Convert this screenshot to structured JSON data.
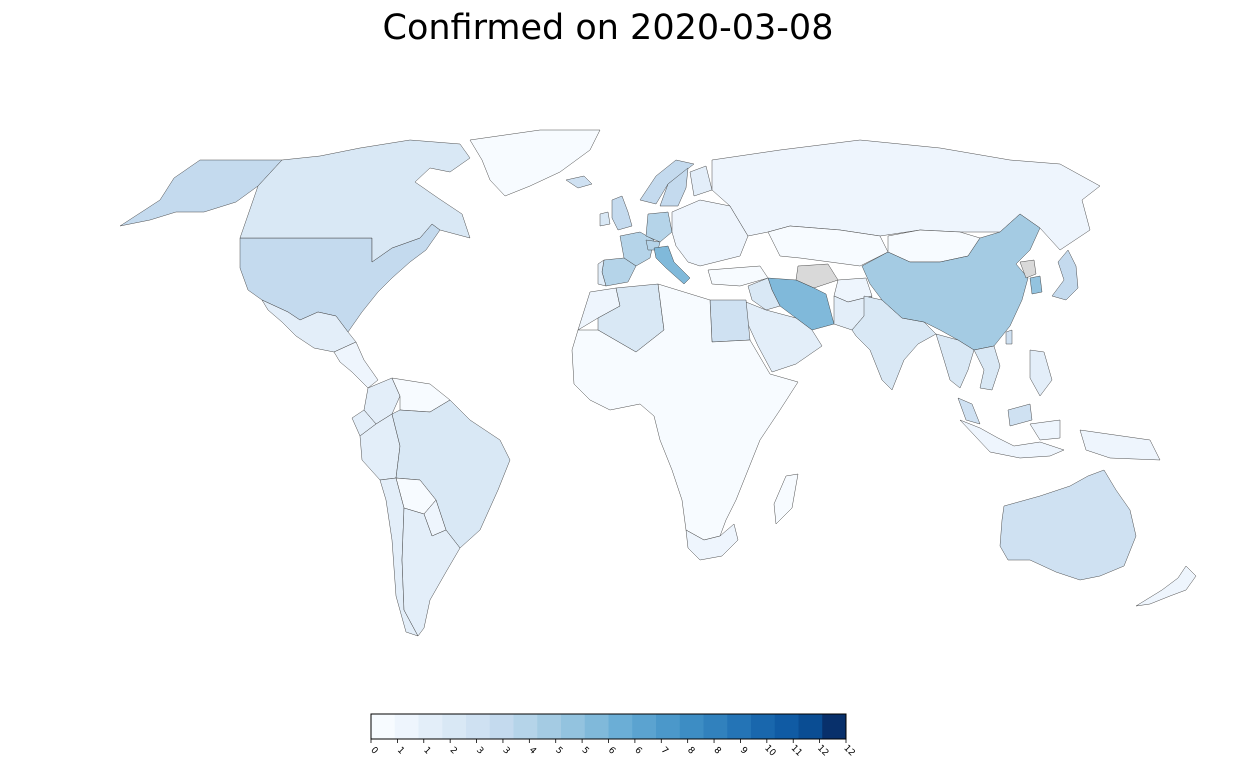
{
  "title": "Confirmed on 2020-03-08",
  "colorbar": {
    "ticks": [
      "0",
      "1",
      "1",
      "2",
      "3",
      "3",
      "4",
      "5",
      "5",
      "6",
      "6",
      "7",
      "8",
      "8",
      "9",
      "10",
      "11",
      "12",
      "12"
    ],
    "colors": [
      "#f7fbff",
      "#eef5fd",
      "#e3eef9",
      "#d9e8f5",
      "#cfe1f2",
      "#c4daee",
      "#b5d4e9",
      "#a4cbe3",
      "#93c3df",
      "#80b9da",
      "#6baed6",
      "#5ba3d0",
      "#4b98ca",
      "#3d8dc4",
      "#3181bd",
      "#2474b6",
      "#1967ad",
      "#105ba4",
      "#0a4d93",
      "#08306b"
    ],
    "edge_color": "#000000"
  },
  "countries": [
    {
      "name": "United States",
      "level": 5
    },
    {
      "name": "Alaska",
      "level": 5
    },
    {
      "name": "Canada",
      "level": 3
    },
    {
      "name": "Greenland",
      "level": 0
    },
    {
      "name": "Mexico",
      "level": 2
    },
    {
      "name": "Central America",
      "level": 1
    },
    {
      "name": "Colombia",
      "level": 2
    },
    {
      "name": "Venezuela",
      "level": 0
    },
    {
      "name": "Ecuador",
      "level": 2
    },
    {
      "name": "Peru",
      "level": 2
    },
    {
      "name": "Brazil",
      "level": 3
    },
    {
      "name": "Bolivia",
      "level": 0
    },
    {
      "name": "Paraguay",
      "level": 1
    },
    {
      "name": "Chile",
      "level": 2
    },
    {
      "name": "Argentina",
      "level": 2
    },
    {
      "name": "Iceland",
      "level": 4
    },
    {
      "name": "United Kingdom",
      "level": 5
    },
    {
      "name": "Ireland",
      "level": 3
    },
    {
      "name": "France",
      "level": 6
    },
    {
      "name": "Spain",
      "level": 6
    },
    {
      "name": "Portugal",
      "level": 2
    },
    {
      "name": "Germany",
      "level": 6
    },
    {
      "name": "Italy",
      "level": 9
    },
    {
      "name": "Switzerland",
      "level": 6
    },
    {
      "name": "Norway",
      "level": 5
    },
    {
      "name": "Sweden",
      "level": 5
    },
    {
      "name": "Finland",
      "level": 2
    },
    {
      "name": "Eastern Europe",
      "level": 1
    },
    {
      "name": "Russia",
      "level": 1
    },
    {
      "name": "Kazakhstan",
      "level": 0
    },
    {
      "name": "Turkey",
      "level": 0
    },
    {
      "name": "Iran",
      "level": 9
    },
    {
      "name": "Turkmenistan",
      "level": "none"
    },
    {
      "name": "Afghanistan",
      "level": 1
    },
    {
      "name": "Pakistan",
      "level": 2
    },
    {
      "name": "India",
      "level": 3
    },
    {
      "name": "China",
      "level": 7
    },
    {
      "name": "Mongolia",
      "level": 0
    },
    {
      "name": "North Korea",
      "level": "none"
    },
    {
      "name": "South Korea",
      "level": 8
    },
    {
      "name": "Japan",
      "level": 5
    },
    {
      "name": "Taiwan",
      "level": 4
    },
    {
      "name": "Southeast Asia",
      "level": 3
    },
    {
      "name": "Vietnam",
      "level": 3
    },
    {
      "name": "Philippines",
      "level": 2
    },
    {
      "name": "Malaysia",
      "level": 4
    },
    {
      "name": "Indonesia",
      "level": 1
    },
    {
      "name": "Australia",
      "level": 4
    },
    {
      "name": "New Zealand",
      "level": 1
    },
    {
      "name": "Egypt",
      "level": 4
    },
    {
      "name": "Algeria",
      "level": 3
    },
    {
      "name": "Morocco",
      "level": 1
    },
    {
      "name": "Saudi Arabia",
      "level": 2
    },
    {
      "name": "Iraq",
      "level": 3
    },
    {
      "name": "Africa",
      "level": 0
    },
    {
      "name": "South Africa",
      "level": 1
    },
    {
      "name": "Madagascar",
      "level": 0
    }
  ]
}
